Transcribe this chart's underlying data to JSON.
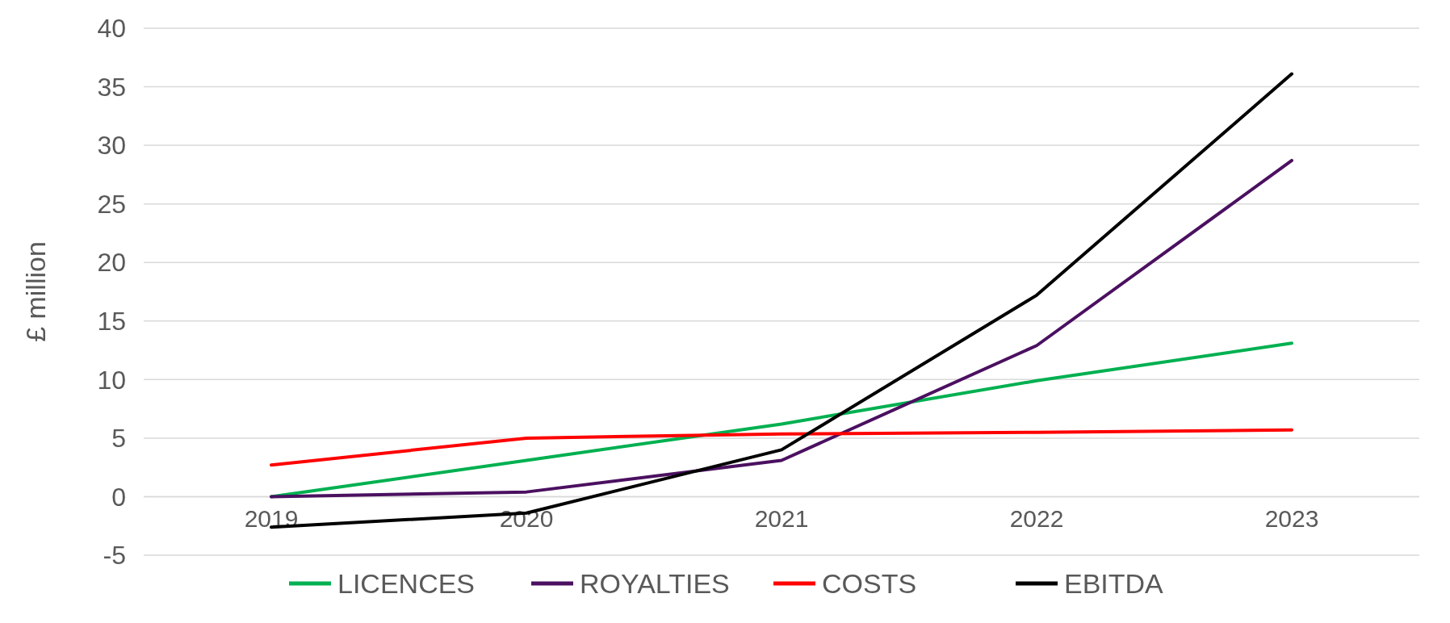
{
  "chart_data": {
    "type": "line",
    "ylabel": "£ million",
    "categories": [
      "2019",
      "2020",
      "2021",
      "2022",
      "2023"
    ],
    "series": [
      {
        "name": "LICENCES",
        "color": "#00b050",
        "values": [
          0,
          3.1,
          6.2,
          9.9,
          13.1
        ]
      },
      {
        "name": "ROYALTIES",
        "color": "#4b1060",
        "values": [
          0,
          0.4,
          3.1,
          12.9,
          28.7
        ]
      },
      {
        "name": "COSTS",
        "color": "#ff0000",
        "values": [
          2.7,
          5.0,
          5.35,
          5.5,
          5.7
        ]
      },
      {
        "name": "EBITDA",
        "color": "#000000",
        "values": [
          -2.6,
          -1.4,
          4.0,
          17.2,
          36.1
        ]
      }
    ],
    "ylim": [
      -5,
      40
    ],
    "yticks": [
      -5,
      0,
      5,
      10,
      15,
      20,
      25,
      30,
      35,
      40
    ],
    "grid": "y",
    "legend": "bottom",
    "marker": "none",
    "line_style": "solid"
  }
}
